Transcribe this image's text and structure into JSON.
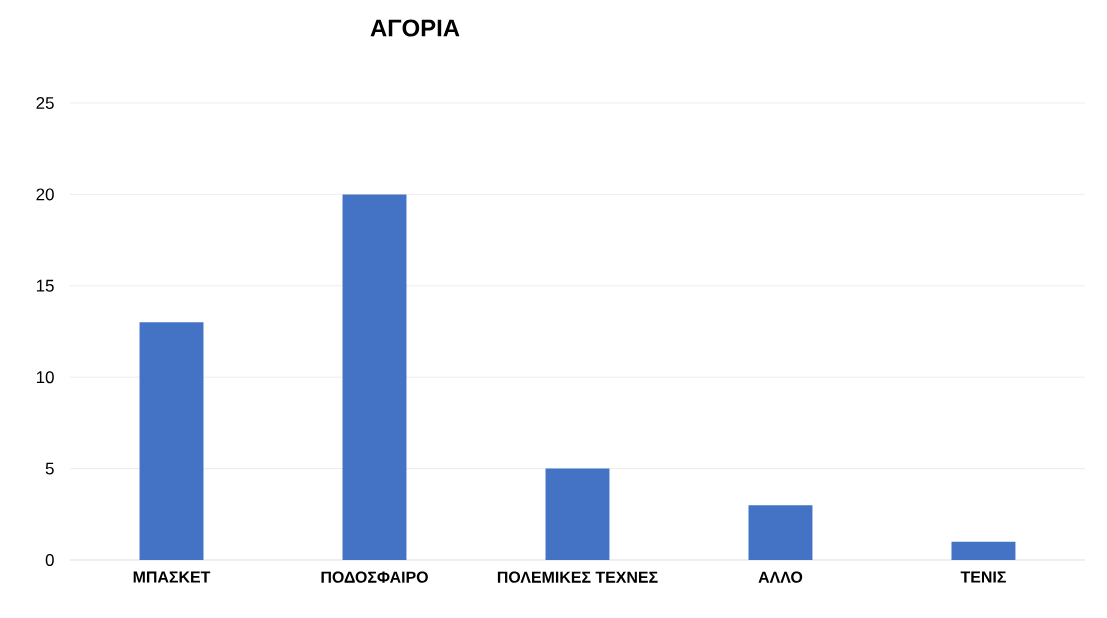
{
  "chart_data": {
    "type": "bar",
    "title": "ΑΓΟΡΙΑ",
    "categories": [
      "ΜΠΑΣΚΕΤ",
      "ΠΟΔΟΣΦΑΙΡΟ",
      "ΠΟΛΕΜΙΚΕΣ ΤΕΧΝΕΣ",
      "ΑΛΛΟ",
      "ΤΕΝΙΣ"
    ],
    "values": [
      13,
      20,
      5,
      3,
      1
    ],
    "color": "#4472c4",
    "ylim": [
      0,
      25
    ],
    "yticks": [
      0,
      5,
      10,
      15,
      20,
      25
    ],
    "grid": "y"
  }
}
